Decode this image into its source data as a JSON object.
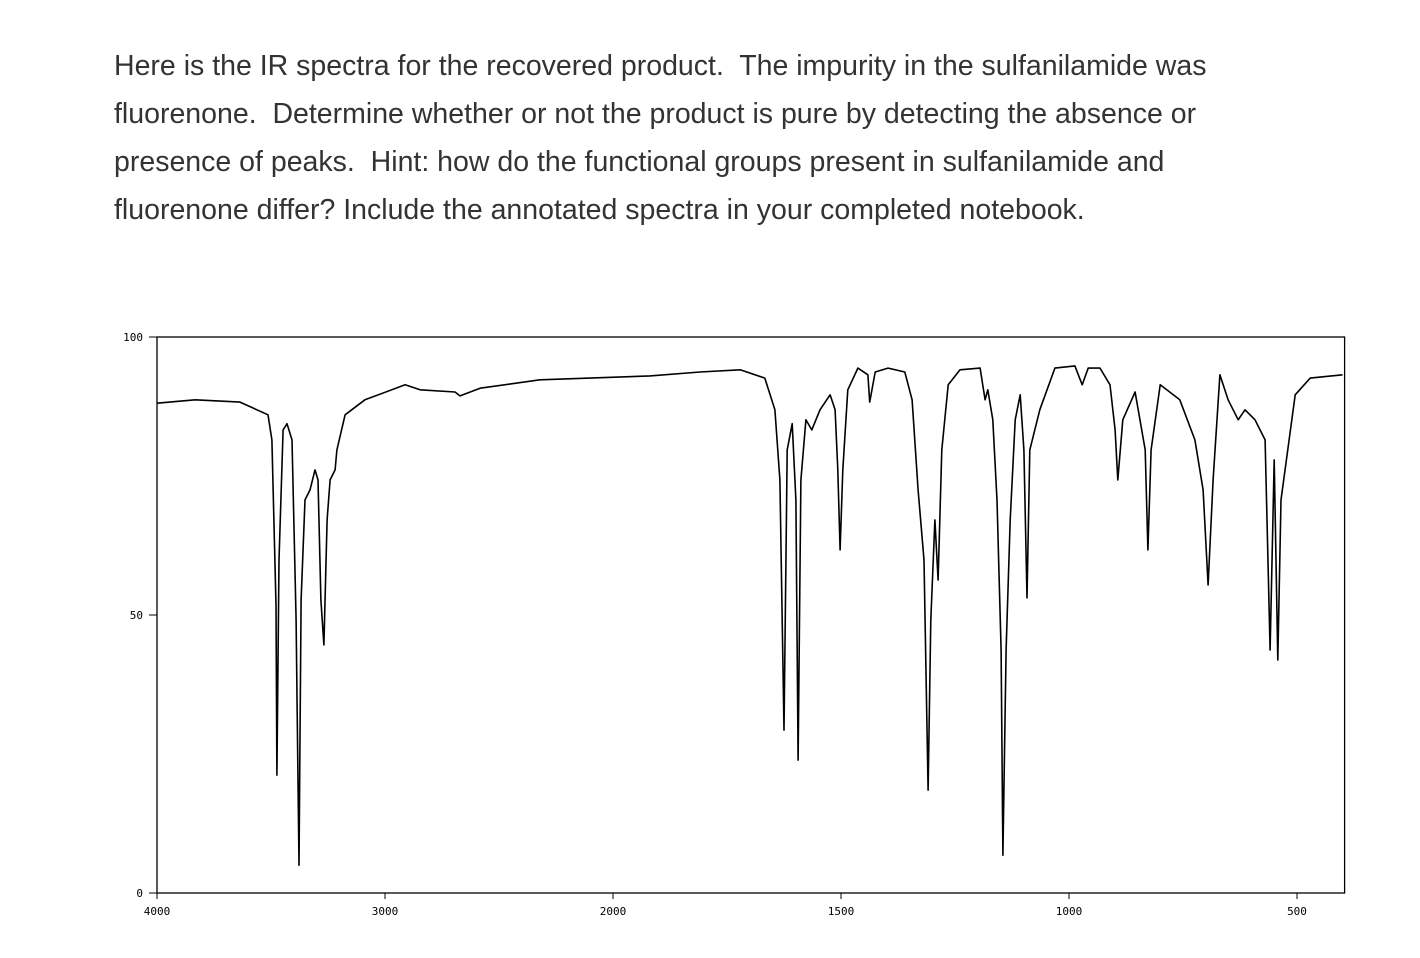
{
  "paragraph_lines": [
    "Here is the IR spectra for the recovered product.  The impurity in the sulfanilamide was",
    "fluorenone.  Determine whether or not the product is pure by detecting the absence or",
    "presence of peaks.  Hint: how do the functional groups present in sulfanilamide and",
    "fluorenone differ? Include the annotated spectra in your completed notebook."
  ],
  "chart_data": {
    "type": "line",
    "color": "#000000",
    "xlim": [
      4000,
      400
    ],
    "x_scale_doubles_below": 2000,
    "ylim": [
      0,
      100
    ],
    "xticks": [
      4000,
      3000,
      2000,
      1500,
      1000,
      500
    ],
    "yticks": [
      0,
      50,
      100
    ],
    "x": [
      4000,
      3833,
      3636,
      3513,
      3496,
      3478,
      3474,
      3465,
      3447,
      3430,
      3408,
      3390,
      3377,
      3368,
      3351,
      3329,
      3307,
      3294,
      3281,
      3268,
      3254,
      3241,
      3219,
      3211,
      3175,
      3088,
      2912,
      2846,
      2693,
      2671,
      2583,
      2320,
      1919,
      1809,
      1721,
      1667,
      1645,
      1634,
      1625,
      1618,
      1607,
      1599,
      1594,
      1588,
      1577,
      1564,
      1546,
      1524,
      1513,
      1507,
      1502,
      1496,
      1485,
      1463,
      1441,
      1437,
      1425,
      1397,
      1360,
      1344,
      1331,
      1318,
      1309,
      1303,
      1294,
      1287,
      1279,
      1265,
      1239,
      1195,
      1184,
      1178,
      1167,
      1158,
      1149,
      1145,
      1138,
      1129,
      1118,
      1107,
      1099,
      1092,
      1086,
      1064,
      1031,
      987,
      971,
      958,
      932,
      910,
      899,
      893,
      882,
      855,
      833,
      827,
      820,
      800,
      757,
      724,
      706,
      695,
      684,
      669,
      651,
      629,
      614,
      592,
      570,
      559,
      550,
      542,
      535,
      504,
      471,
      400
    ],
    "values": [
      88.1,
      88.7,
      88.3,
      86,
      81.5,
      51.8,
      21.2,
      59.9,
      83.3,
      84.4,
      81.5,
      49.1,
      5,
      52.7,
      70.7,
      72.5,
      76.1,
      74.3,
      52.7,
      44.6,
      67.1,
      74.3,
      76.1,
      79.7,
      86,
      88.7,
      91.4,
      90.5,
      90.1,
      89.4,
      90.8,
      92.3,
      93,
      93.7,
      94.1,
      92.6,
      86.9,
      74.3,
      29.3,
      79.7,
      84.4,
      70.7,
      23.9,
      74.3,
      85.1,
      83.3,
      86.9,
      89.6,
      86.9,
      76.1,
      61.7,
      76.1,
      90.5,
      94.4,
      93.2,
      88.3,
      93.7,
      94.4,
      93.7,
      88.7,
      72.5,
      59.9,
      18.5,
      49.1,
      67.1,
      56.3,
      79.7,
      91.4,
      94.1,
      94.4,
      88.7,
      90.5,
      85.1,
      70.7,
      43.7,
      6.8,
      43.7,
      67.1,
      85.1,
      89.6,
      79.7,
      53.1,
      79.7,
      86.9,
      94.4,
      94.8,
      91.4,
      94.4,
      94.4,
      91.4,
      83.3,
      74.3,
      85.1,
      90.1,
      79.7,
      61.7,
      79.7,
      91.4,
      88.7,
      81.5,
      72.5,
      55.4,
      74.3,
      93.2,
      88.7,
      85.1,
      86.9,
      85.1,
      81.5,
      43.7,
      77.9,
      41.9,
      70.7,
      89.6,
      92.6,
      93.2
    ]
  }
}
